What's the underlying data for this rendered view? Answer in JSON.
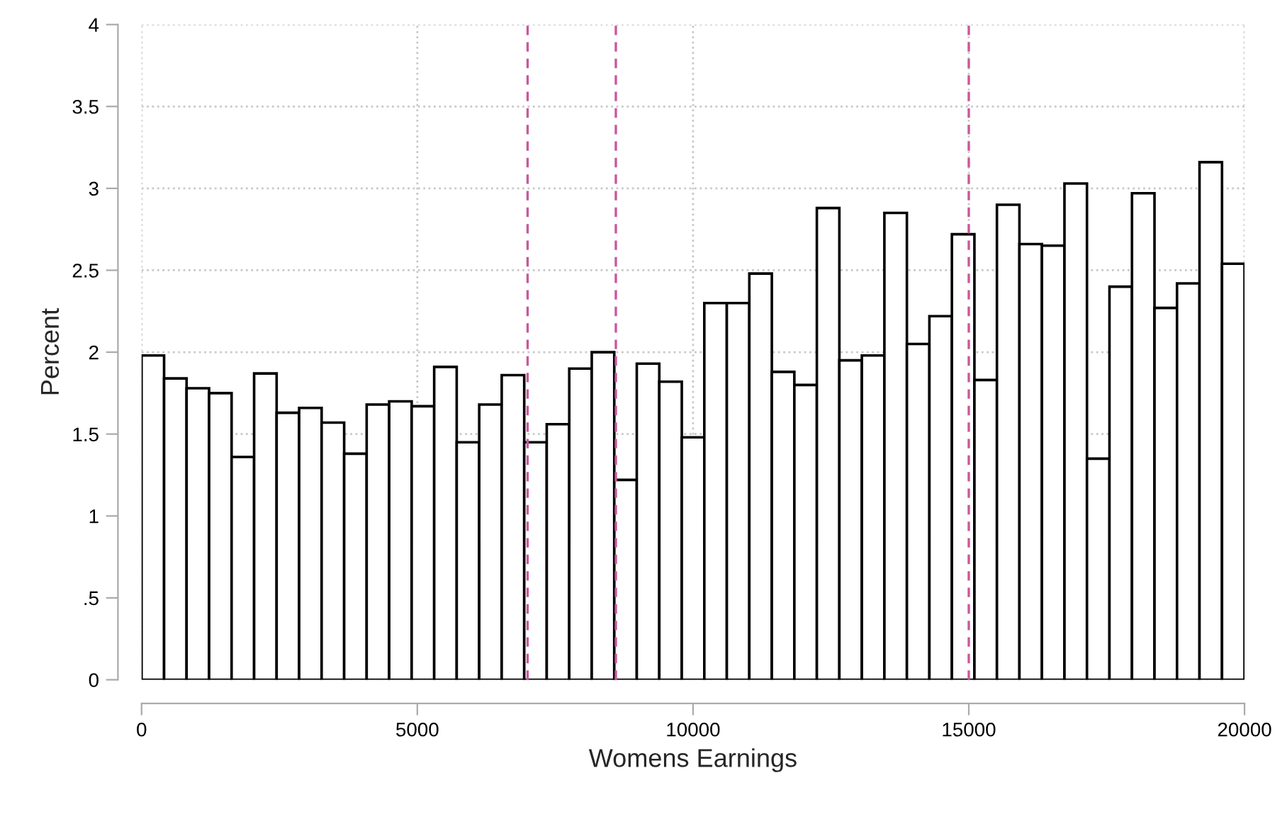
{
  "chart_data": {
    "type": "histogram",
    "xlabel": "Womens Earnings",
    "ylabel": "Percent",
    "bins": [
      0,
      408.2,
      816.3,
      1224.5,
      1632.7,
      2040.8,
      2449.0,
      2857.1,
      3265.3,
      3673.5,
      4081.6,
      4489.8,
      4898.0,
      5306.1,
      5714.3,
      6122.4,
      6530.6,
      6938.8,
      7346.9,
      7755.1,
      8163.3,
      8571.4,
      8979.6,
      9387.8,
      9795.9,
      10204.1,
      10612.2,
      11020.4,
      11428.6,
      11836.7,
      12244.9,
      12653.1,
      13061.2,
      13469.4,
      13877.6,
      14285.7,
      14693.9,
      15102.0,
      15510.2,
      15918.4,
      16326.5,
      16734.7,
      17142.9,
      17551.0,
      17959.2,
      18367.3,
      18775.5,
      19183.7,
      19591.8,
      20000
    ],
    "values": [
      1.98,
      1.84,
      1.78,
      1.75,
      1.36,
      1.87,
      1.63,
      1.66,
      1.57,
      1.38,
      1.68,
      1.7,
      1.67,
      1.91,
      1.45,
      1.68,
      1.86,
      1.45,
      1.56,
      1.9,
      2.0,
      1.22,
      1.93,
      1.82,
      1.48,
      2.3,
      2.3,
      2.48,
      1.88,
      1.8,
      2.88,
      1.95,
      1.98,
      2.85,
      2.05,
      2.22,
      2.72,
      1.83,
      2.9,
      2.66,
      2.65,
      3.03,
      1.35,
      2.4,
      2.97,
      2.27,
      2.42,
      3.16,
      2.54
    ],
    "color": "#ffffff",
    "xlim": [
      0,
      20000
    ],
    "xticks": [
      0,
      5000,
      10000,
      15000,
      20000
    ],
    "ylim": [
      0,
      4
    ],
    "yticks": [
      0,
      {
        "value": 0.5,
        "label": ".5"
      },
      1,
      1.5,
      2,
      2.5,
      3,
      3.5,
      4
    ],
    "grid": true,
    "ref_lines": [
      {
        "axis": "x",
        "value": 7000,
        "color": "#c9579b",
        "line_style": "dashed"
      },
      {
        "axis": "x",
        "value": 8600,
        "color": "#c9579b",
        "line_style": "dashed"
      },
      {
        "axis": "x",
        "value": 15000,
        "color": "#c9579b",
        "line_style": "dashed"
      }
    ]
  }
}
